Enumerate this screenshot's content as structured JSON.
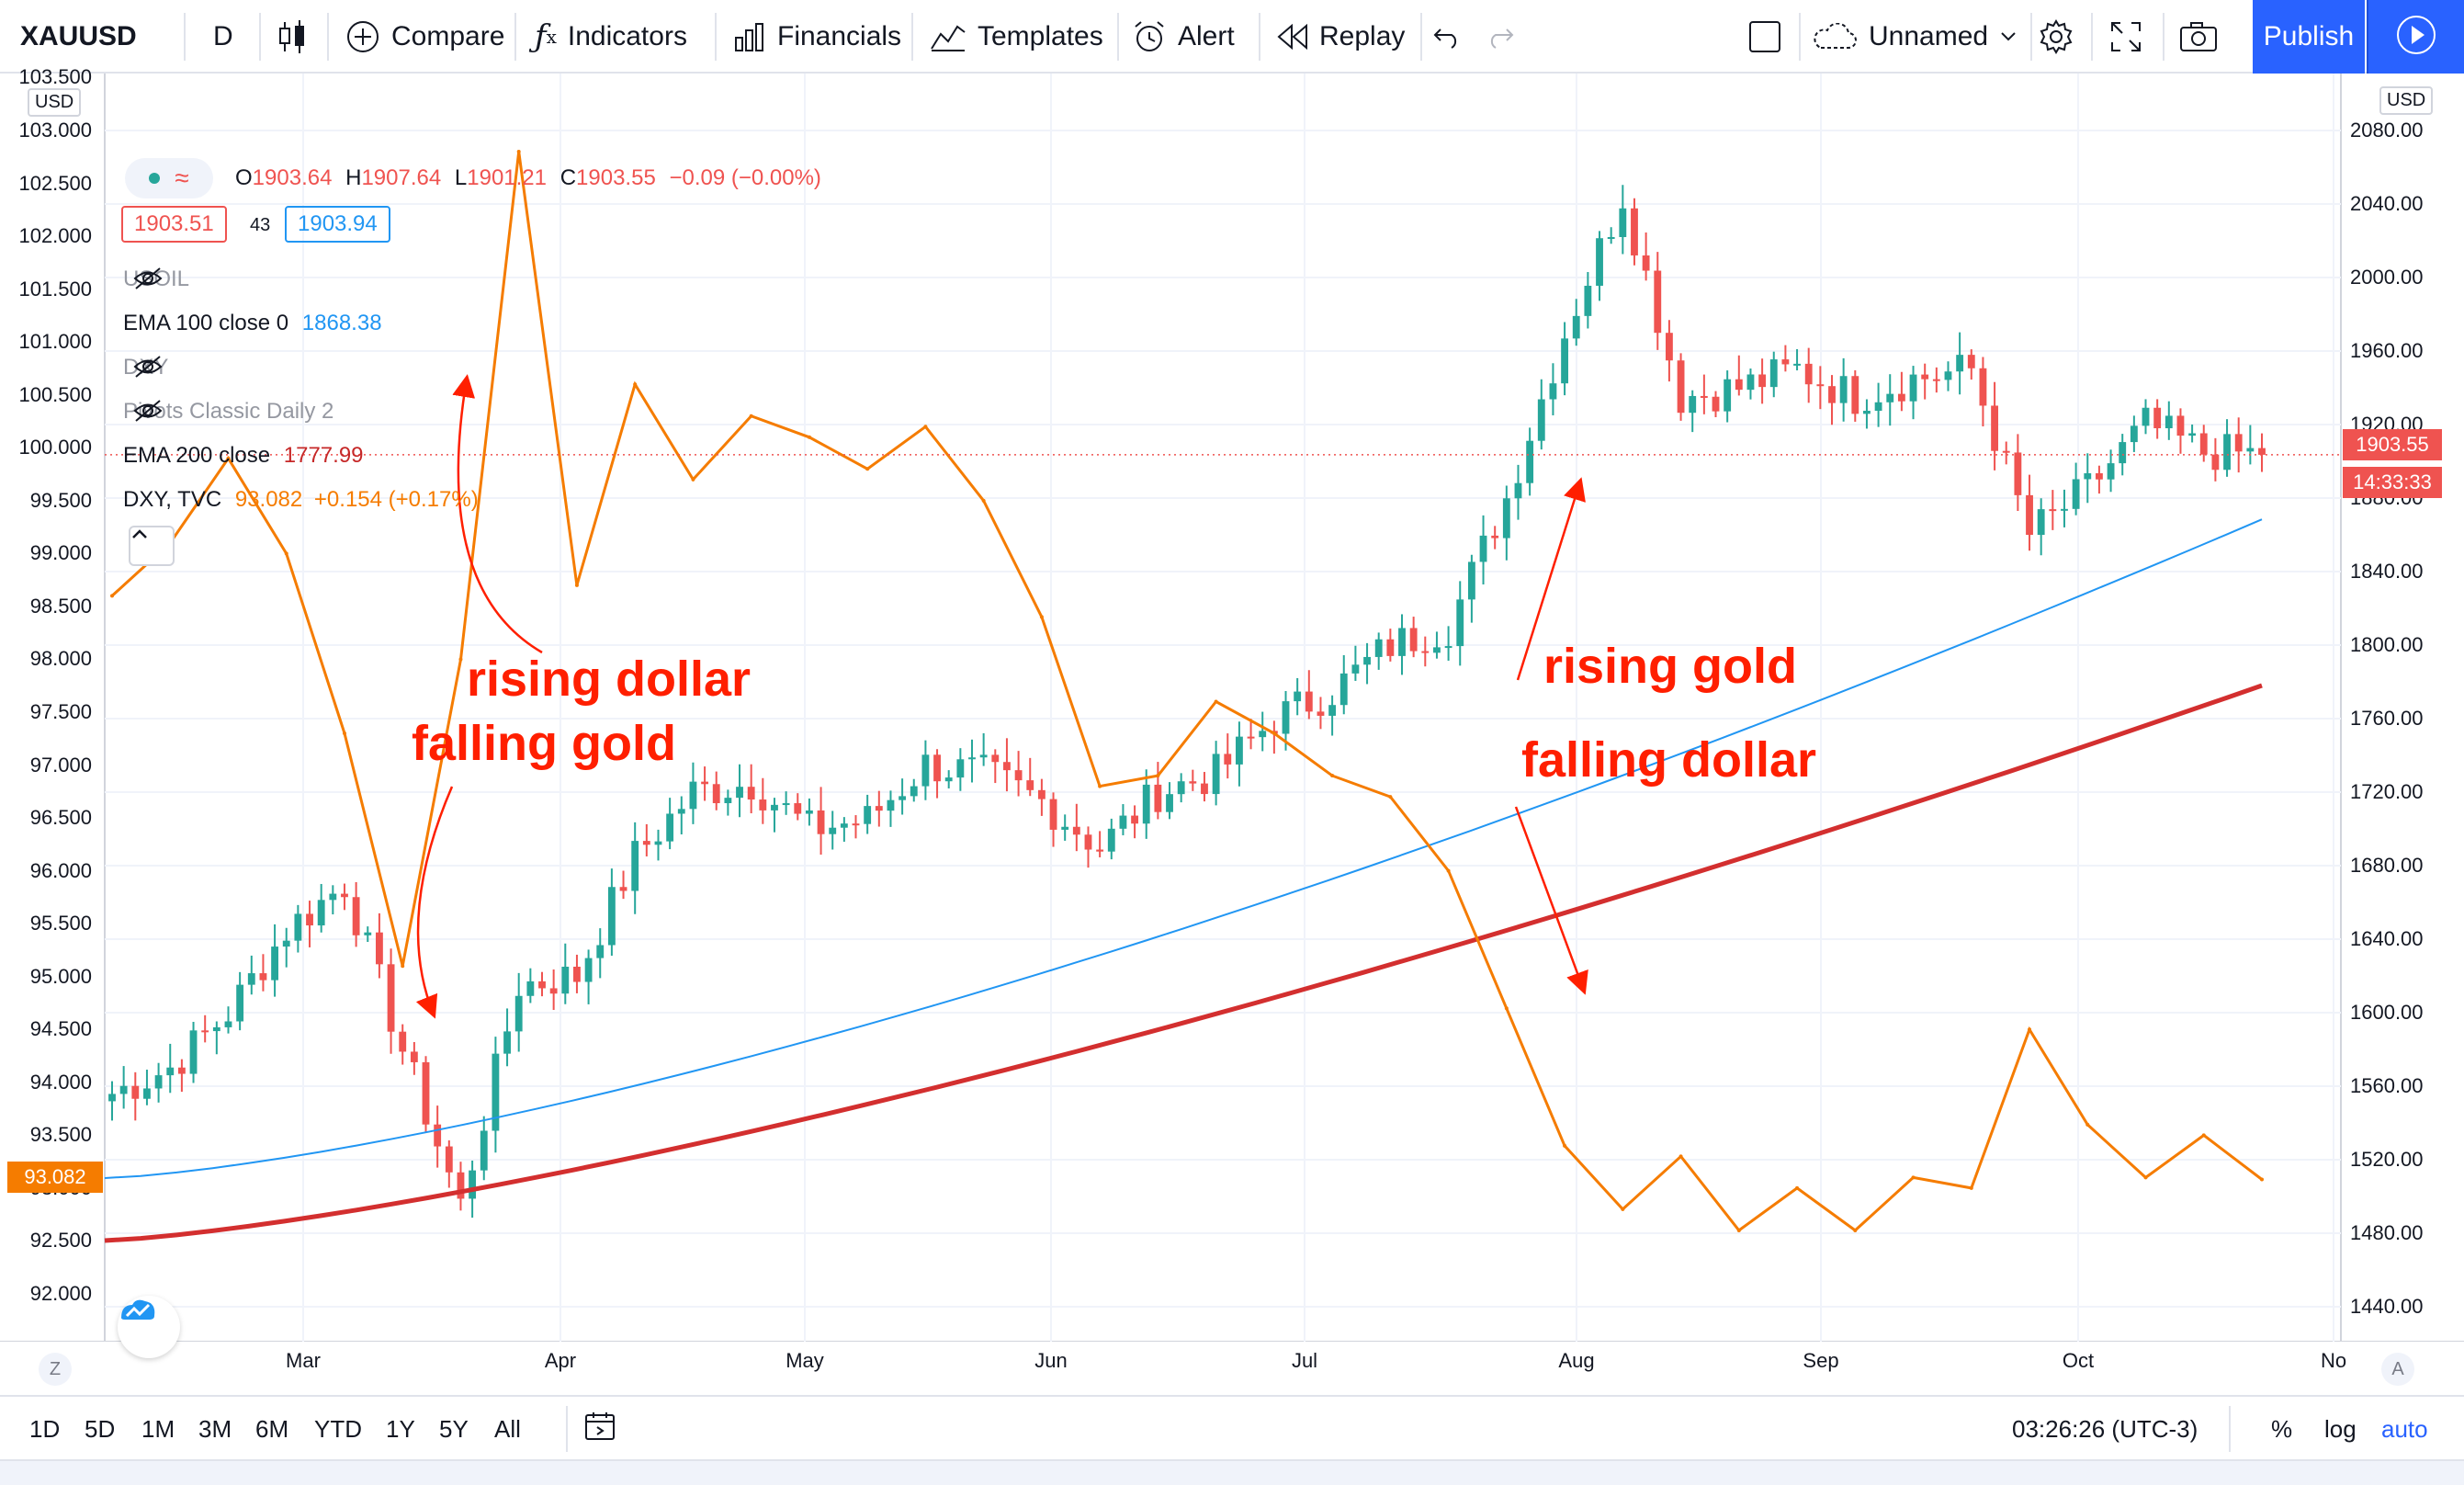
{
  "toolbar": {
    "symbol": "XAUUSD",
    "interval": "D",
    "compare_label": "Compare",
    "indicators_label": "Indicators",
    "financials_label": "Financials",
    "templates_label": "Templates",
    "alert_label": "Alert",
    "replay_label": "Replay",
    "layout_name": "Unnamed",
    "publish_label": "Publish"
  },
  "legend": {
    "ohlc": {
      "o_label": "O",
      "o_value": "1903.64",
      "h_label": "H",
      "h_value": "1907.64",
      "l_label": "L",
      "l_value": "1901.21",
      "c_label": "C",
      "c_value": "1903.55",
      "change": "−0.09 (−0.00%)"
    },
    "bid": "1903.51",
    "spread": "43",
    "ask": "1903.94",
    "studies": [
      {
        "name": "USOIL",
        "value": "",
        "hidden": true
      },
      {
        "name": "EMA 100 close 0",
        "value": "1868.38",
        "color": "#2196f3"
      },
      {
        "name": "DXY",
        "value": "",
        "hidden": true
      },
      {
        "name": "Pivots Classic Daily 2",
        "value": "",
        "hidden": true
      },
      {
        "name": "EMA 200 close",
        "value": "1777.99",
        "color": "#c62828"
      },
      {
        "name": "DXY, TVC",
        "value": "93.082",
        "change": "+0.154 (+0.17%)",
        "color": "#f57c00"
      }
    ]
  },
  "left_axis": {
    "unit": "USD",
    "ticks": [
      "103.500",
      "103.000",
      "102.500",
      "102.000",
      "101.500",
      "101.000",
      "100.500",
      "100.000",
      "99.500",
      "99.000",
      "98.500",
      "98.000",
      "97.500",
      "97.000",
      "96.500",
      "96.000",
      "95.500",
      "95.000",
      "94.500",
      "94.000",
      "93.500",
      "93.000",
      "92.500",
      "92.000"
    ],
    "current_label": "93.082"
  },
  "right_axis": {
    "unit": "USD",
    "ticks": [
      "2080.00",
      "2040.00",
      "2000.00",
      "1960.00",
      "1920.00",
      "1880.00",
      "1840.00",
      "1800.00",
      "1760.00",
      "1720.00",
      "1680.00",
      "1640.00",
      "1600.00",
      "1560.00",
      "1520.00",
      "1480.00",
      "1440.00"
    ],
    "last_price": "1903.55",
    "countdown": "14:33:33"
  },
  "time_axis": {
    "months": [
      "Mar",
      "Apr",
      "May",
      "Jun",
      "Jul",
      "Aug",
      "Sep",
      "Oct",
      "No"
    ]
  },
  "annotations": {
    "rising_dollar": "rising dollar",
    "falling_gold": "falling gold",
    "rising_gold": "rising gold",
    "falling_dollar": "falling dollar"
  },
  "bottom": {
    "ranges": [
      "1D",
      "5D",
      "1M",
      "3M",
      "6M",
      "YTD",
      "1Y",
      "5Y",
      "All"
    ],
    "clock": "03:26:26 (UTC-3)",
    "percent": "%",
    "log": "log",
    "auto": "auto"
  },
  "corners": {
    "left": "Z",
    "right": "A"
  },
  "colors": {
    "up": "#26a69a",
    "down": "#ef5350",
    "ema100": "#2196f3",
    "ema200": "#d32f2f",
    "dxy": "#f57c00",
    "annotation": "#ff1f00",
    "publish": "#2962ff"
  },
  "chart_data": {
    "type": "line",
    "gold_daily_close": {
      "axis": "right (USD)",
      "x": [
        "Feb-03",
        "Feb-10",
        "Feb-17",
        "Feb-24",
        "Mar-02",
        "Mar-09",
        "Mar-16",
        "Mar-23",
        "Mar-30",
        "Apr-06",
        "Apr-13",
        "Apr-20",
        "Apr-27",
        "May-04",
        "May-11",
        "May-18",
        "May-25",
        "Jun-01",
        "Jun-08",
        "Jun-15",
        "Jun-22",
        "Jun-29",
        "Jul-06",
        "Jul-13",
        "Jul-20",
        "Jul-27",
        "Aug-03",
        "Aug-10",
        "Aug-17",
        "Aug-24",
        "Aug-31",
        "Sep-07",
        "Sep-14",
        "Sep-21",
        "Sep-28",
        "Oct-05",
        "Oct-12",
        "Oct-19"
      ],
      "values": [
        1556,
        1570,
        1600,
        1645,
        1670,
        1580,
        1495,
        1615,
        1620,
        1685,
        1720,
        1725,
        1700,
        1705,
        1735,
        1730,
        1715,
        1690,
        1720,
        1730,
        1760,
        1775,
        1800,
        1810,
        1880,
        1970,
        2045,
        1935,
        1940,
        1950,
        1935,
        1945,
        1950,
        1860,
        1885,
        1920,
        1905,
        1903.55
      ]
    },
    "dxy_close": {
      "axis": "left",
      "x": [
        "Feb-03",
        "Feb-10",
        "Feb-17",
        "Feb-24",
        "Mar-02",
        "Mar-09",
        "Mar-16",
        "Mar-23",
        "Mar-30",
        "Apr-06",
        "Apr-13",
        "Apr-20",
        "Apr-27",
        "May-04",
        "May-11",
        "May-18",
        "May-25",
        "Jun-01",
        "Jun-08",
        "Jun-15",
        "Jun-22",
        "Jun-29",
        "Jul-06",
        "Jul-13",
        "Jul-20",
        "Jul-27",
        "Aug-03",
        "Aug-10",
        "Aug-17",
        "Aug-24",
        "Aug-31",
        "Sep-07",
        "Sep-14",
        "Sep-21",
        "Sep-28",
        "Oct-05",
        "Oct-12",
        "Oct-19"
      ],
      "values": [
        98.6,
        99.1,
        99.9,
        99.0,
        97.3,
        95.1,
        98.0,
        102.8,
        98.7,
        100.6,
        99.7,
        100.3,
        100.1,
        99.8,
        100.2,
        99.5,
        98.4,
        96.8,
        96.9,
        97.6,
        97.3,
        96.9,
        96.7,
        96.0,
        94.7,
        93.4,
        92.8,
        93.3,
        92.6,
        93.0,
        92.6,
        93.1,
        93.0,
        94.5,
        93.6,
        93.1,
        93.5,
        93.082
      ]
    },
    "ema100": {
      "axis": "right (USD)",
      "start": 1510,
      "end": 1868.38
    },
    "ema200": {
      "axis": "right (USD)",
      "start": 1476,
      "end": 1777.99
    },
    "ylim_right": [
      1420,
      2090
    ],
    "ylim_left": [
      91.8,
      103.5
    ],
    "grid": true
  }
}
